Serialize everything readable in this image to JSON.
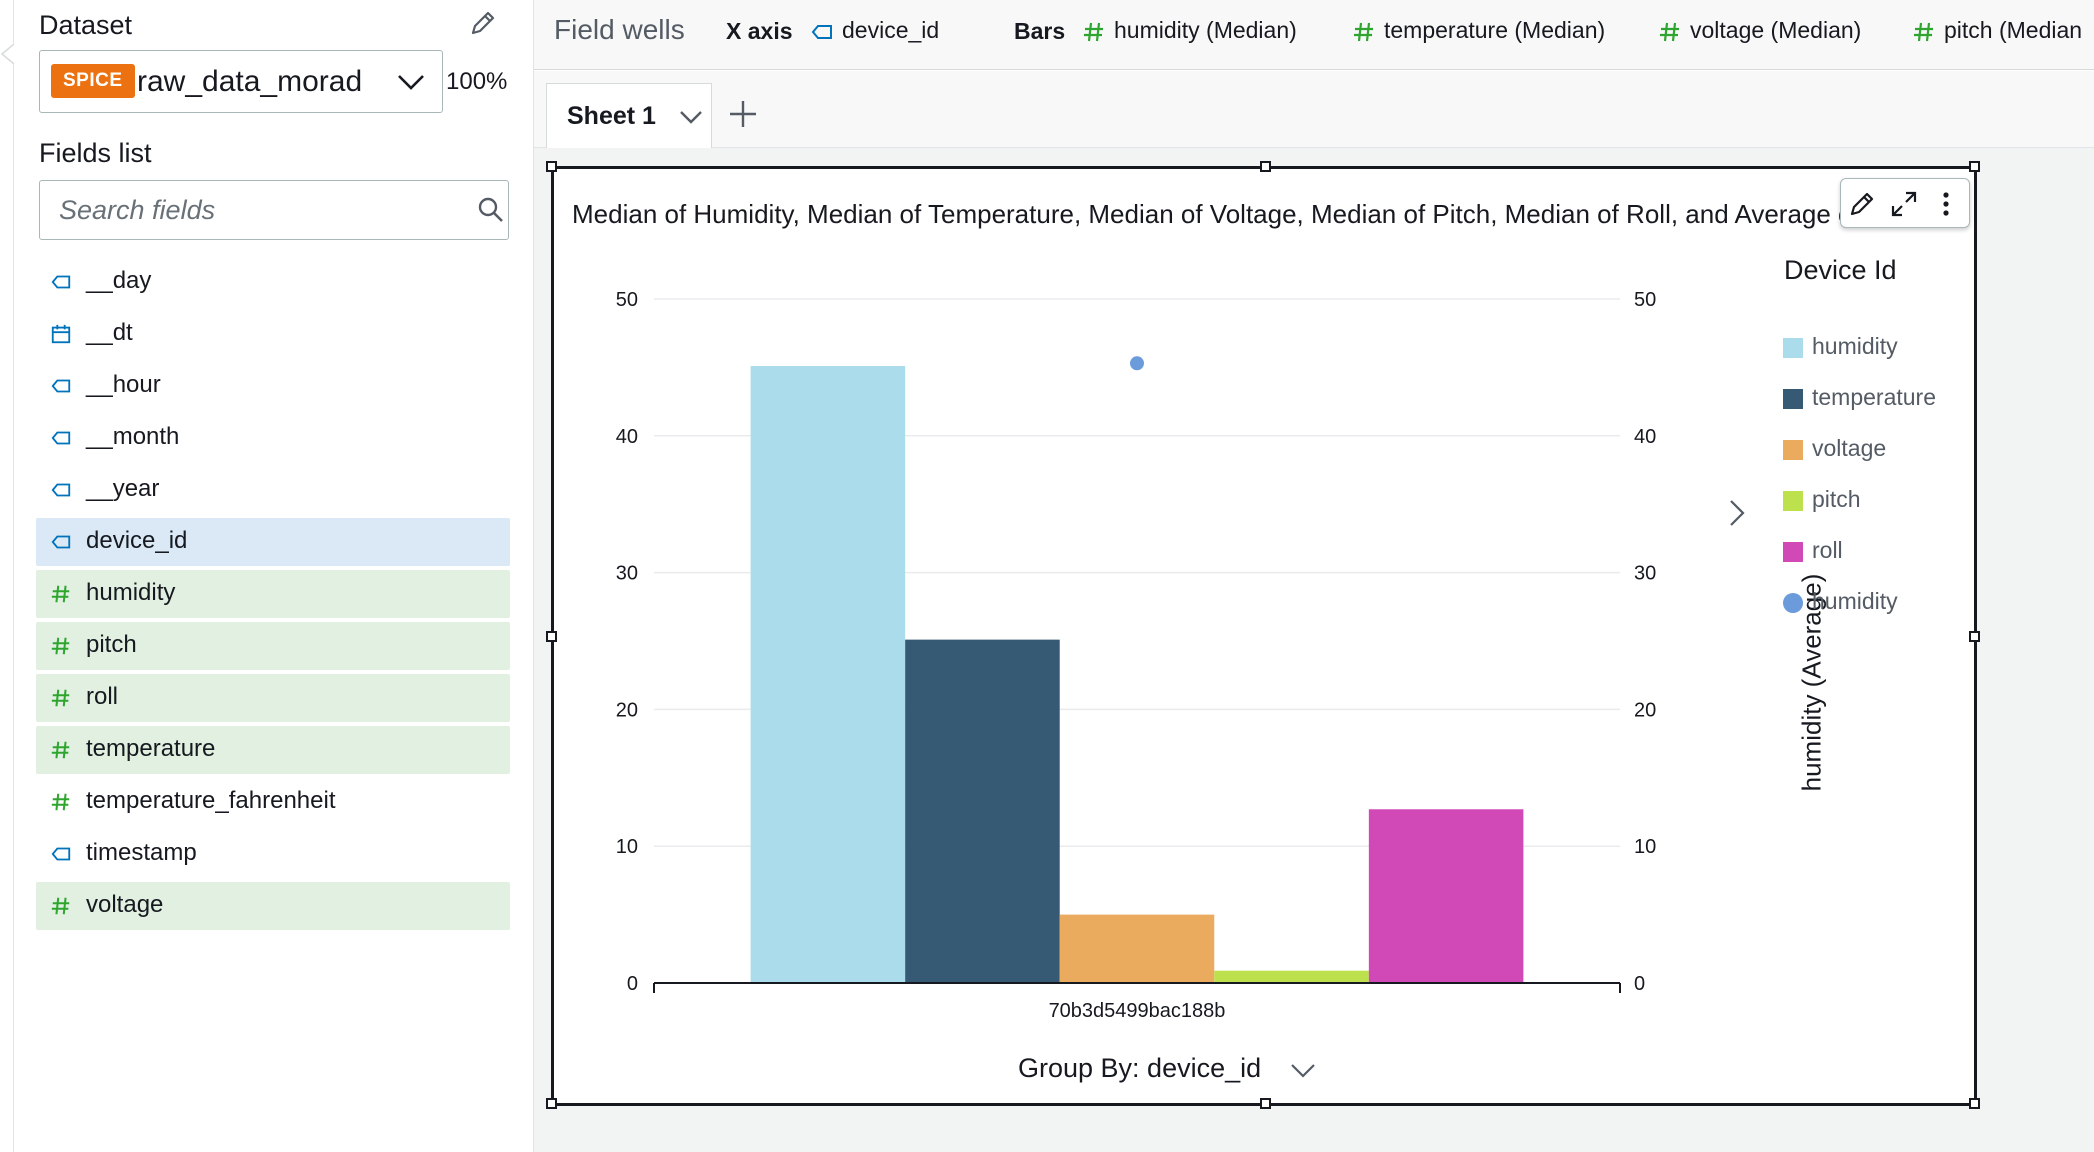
{
  "left_panel": {
    "dataset_heading": "Dataset",
    "dataset": {
      "badge": "SPICE",
      "name": "raw_data_morad",
      "percent": "100%"
    },
    "fields_heading": "Fields list",
    "search_placeholder": "Search fields",
    "fields": [
      {
        "label": "__day",
        "type": "dimension",
        "icon": "dimension-tag-icon",
        "selected": false
      },
      {
        "label": "__dt",
        "type": "date",
        "icon": "calendar-icon",
        "selected": false
      },
      {
        "label": "__hour",
        "type": "dimension",
        "icon": "dimension-tag-icon",
        "selected": false
      },
      {
        "label": "__month",
        "type": "dimension",
        "icon": "dimension-tag-icon",
        "selected": false
      },
      {
        "label": "__year",
        "type": "dimension",
        "icon": "dimension-tag-icon",
        "selected": false
      },
      {
        "label": "device_id",
        "type": "dimension",
        "icon": "dimension-tag-icon",
        "selected": true
      },
      {
        "label": "humidity",
        "type": "measure",
        "icon": "hash-icon",
        "selected": true
      },
      {
        "label": "pitch",
        "type": "measure",
        "icon": "hash-icon",
        "selected": true
      },
      {
        "label": "roll",
        "type": "measure",
        "icon": "hash-icon",
        "selected": true
      },
      {
        "label": "temperature",
        "type": "measure",
        "icon": "hash-icon",
        "selected": true
      },
      {
        "label": "temperature_fahrenheit",
        "type": "measure",
        "icon": "hash-icon",
        "selected": false
      },
      {
        "label": "timestamp",
        "type": "dimension",
        "icon": "dimension-tag-icon",
        "selected": false
      },
      {
        "label": "voltage",
        "type": "measure",
        "icon": "hash-icon",
        "selected": true
      }
    ]
  },
  "field_wells": {
    "title": "Field wells",
    "x_axis_label": "X axis",
    "x_axis_field": "device_id",
    "bars_label": "Bars",
    "bars_fields": [
      "humidity (Median)",
      "temperature (Median)",
      "voltage (Median)",
      "pitch (Median"
    ]
  },
  "sheets": {
    "active": "Sheet 1"
  },
  "colors": {
    "accent_orange": "#ec7211",
    "measure_green": "#2ea52e",
    "dimension_blue": "#0073bb",
    "humidity": "#abdcec",
    "temperature": "#365a74",
    "voltage": "#ebab5f",
    "pitch": "#bde14d",
    "roll": "#d148b7",
    "humidity_avg": "#6b9bdb"
  },
  "chart_data": {
    "type": "bar",
    "title": "Median of Humidity, Median of Temperature, Median of Voltage, Median of Pitch, Median of Roll, and Average of Humidity by Device Id",
    "categories": [
      "70b3d5499bac188b"
    ],
    "series": [
      {
        "name": "humidity",
        "values": [
          45.1
        ],
        "color": "#abdcec",
        "kind": "bar"
      },
      {
        "name": "temperature",
        "values": [
          25.1
        ],
        "color": "#365a74",
        "kind": "bar"
      },
      {
        "name": "voltage",
        "values": [
          5.0
        ],
        "color": "#ebab5f",
        "kind": "bar"
      },
      {
        "name": "pitch",
        "values": [
          0.9
        ],
        "color": "#bde14d",
        "kind": "bar"
      },
      {
        "name": "roll",
        "values": [
          12.7
        ],
        "color": "#d148b7",
        "kind": "bar"
      },
      {
        "name": "humidity",
        "values": [
          45.3
        ],
        "color": "#6b9bdb",
        "kind": "point"
      }
    ],
    "ylim": [
      0,
      50
    ],
    "yticks": [
      0,
      10,
      20,
      30,
      40,
      50
    ],
    "y2_label": "humidity (Average)",
    "xlabel": "Group By: device_id",
    "legend_title": "Device Id",
    "legend_position": "right",
    "grid": true
  }
}
